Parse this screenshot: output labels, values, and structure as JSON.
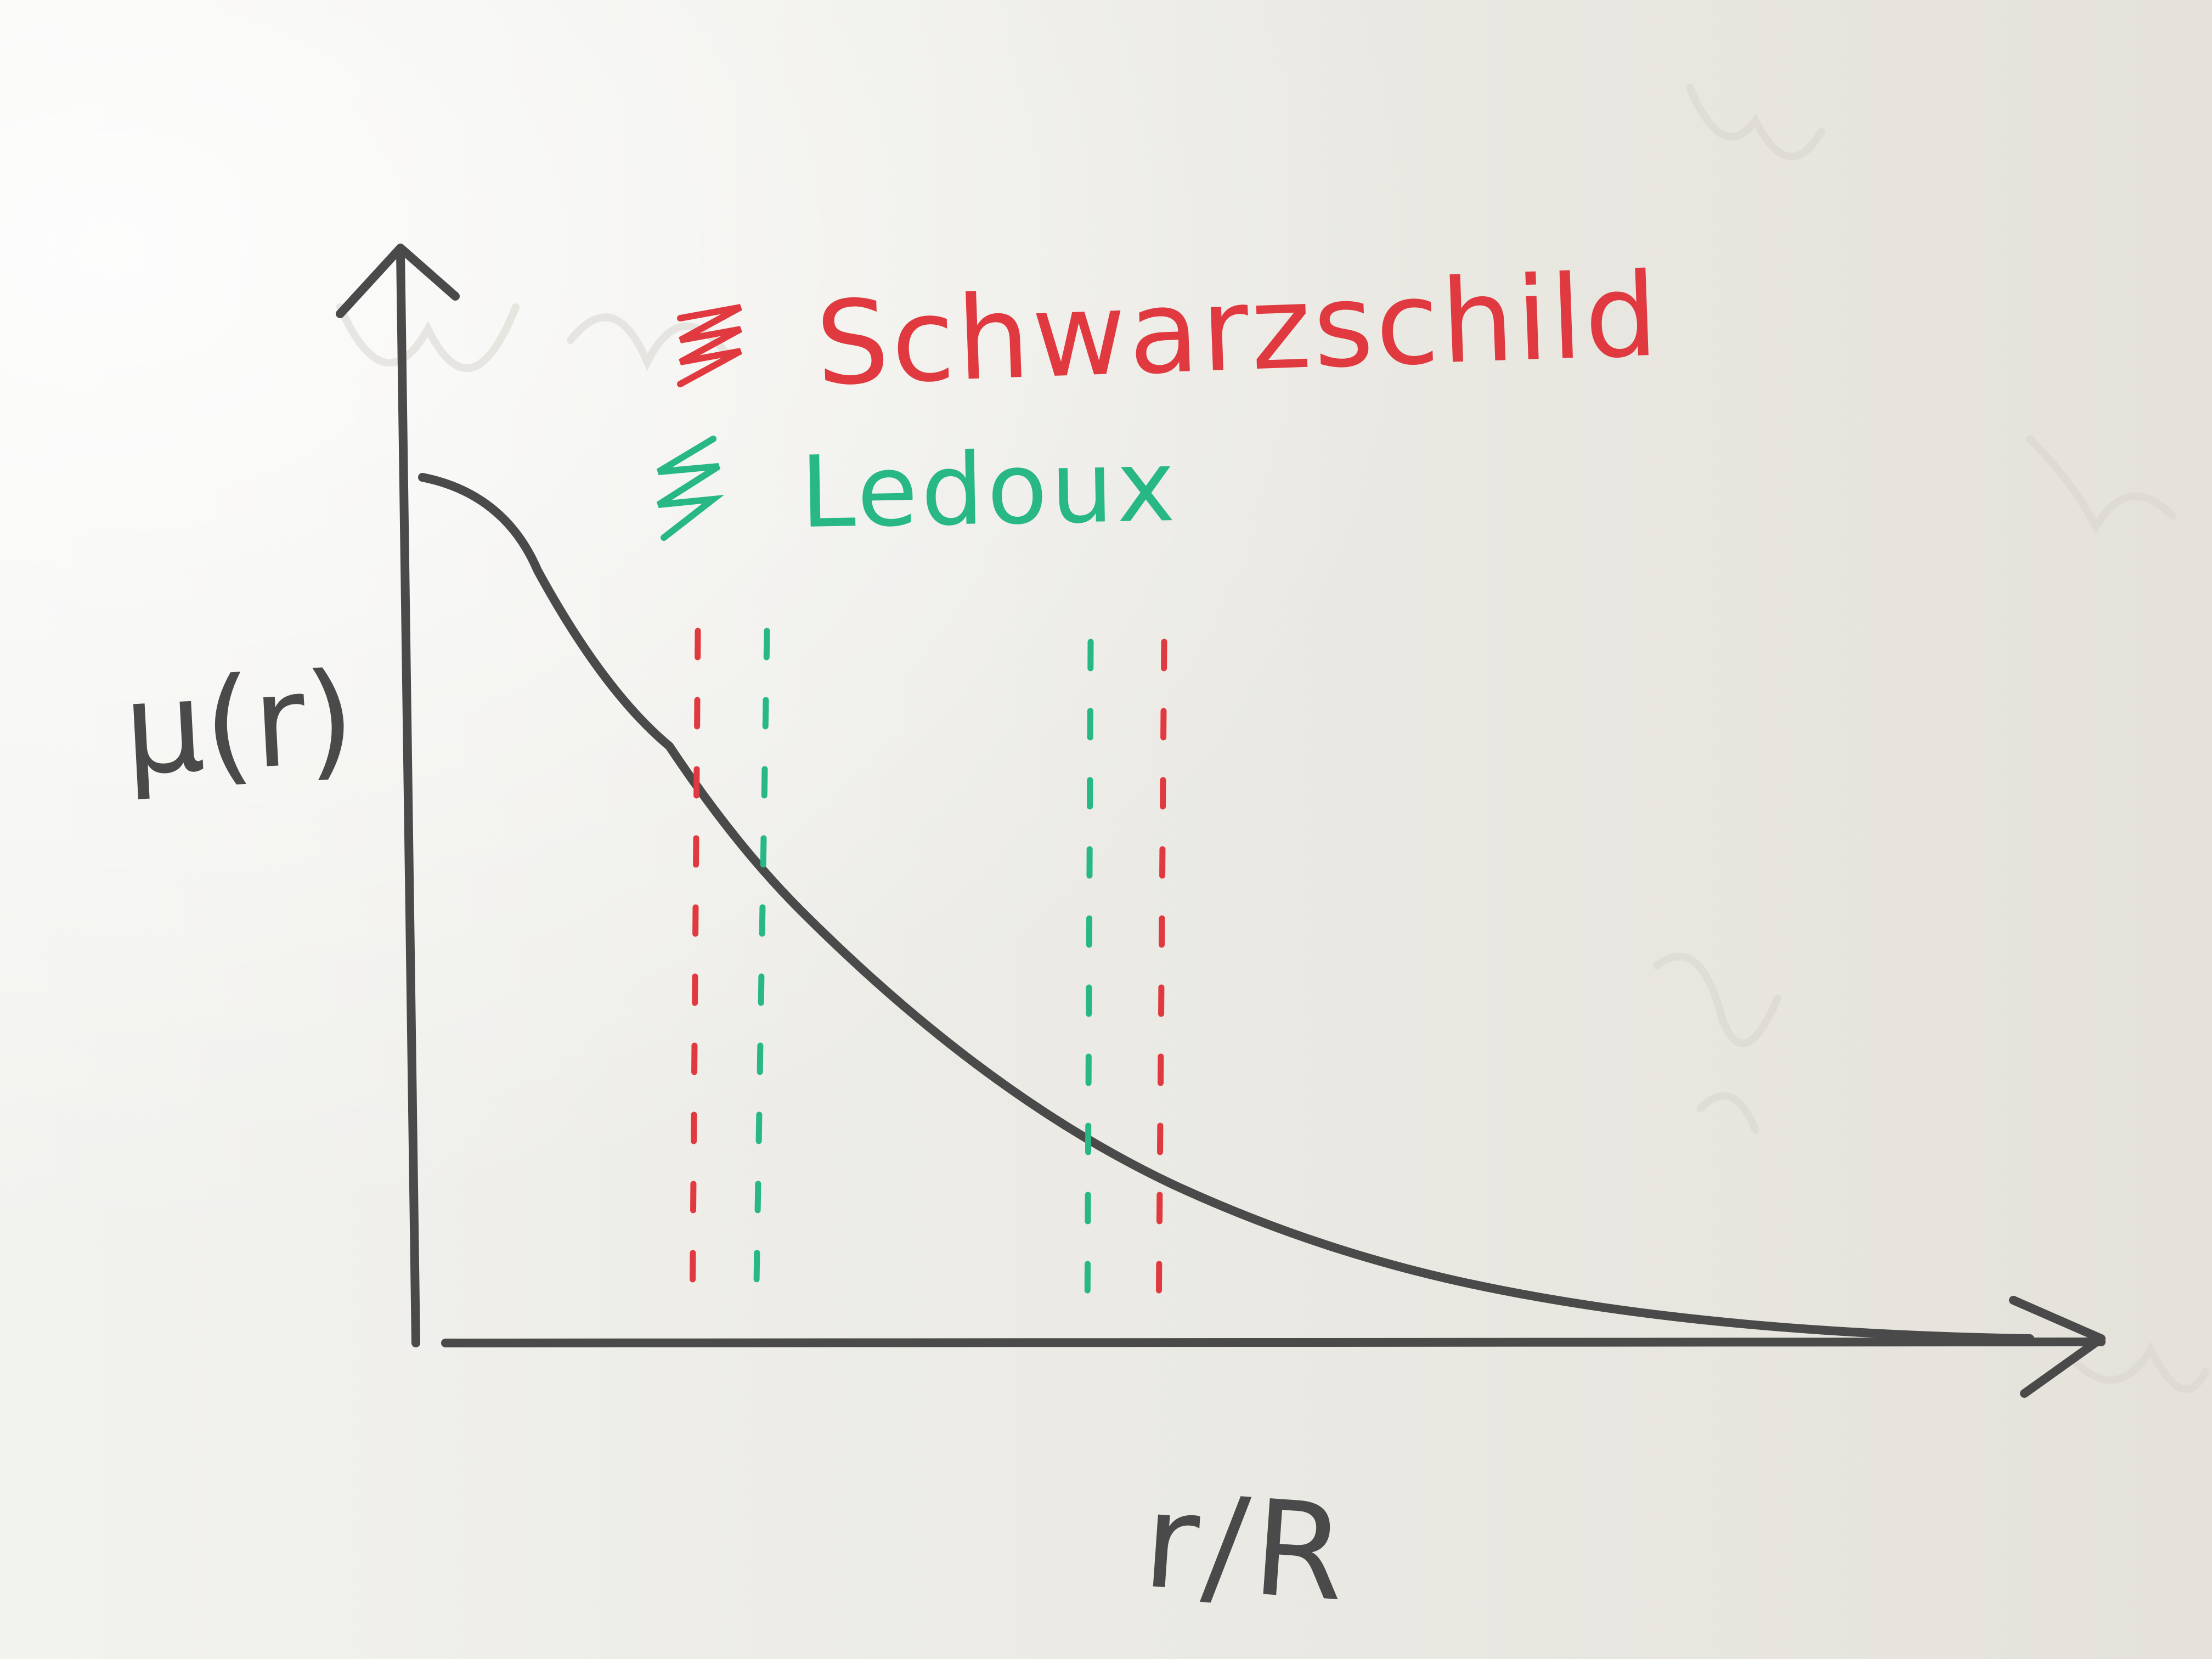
{
  "photo": {
    "subject": "whiteboard sketch"
  },
  "labels": {
    "y_axis": "μ(r)",
    "x_axis": "r/R",
    "legend_red": "Schwarzschild",
    "legend_green": "Ledoux"
  },
  "colors": {
    "board": "#ecebe6",
    "marker_black": "#4a4a4a",
    "marker_red": "#e03a40",
    "marker_green": "#27b886"
  },
  "sketch": {
    "curve_shape": "monotonically decreasing",
    "boundaries": [
      {
        "criterion": "Schwarzschild",
        "color": "red",
        "side": "inner"
      },
      {
        "criterion": "Ledoux",
        "color": "green",
        "side": "inner"
      },
      {
        "criterion": "Ledoux",
        "color": "green",
        "side": "outer"
      },
      {
        "criterion": "Schwarzschild",
        "color": "red",
        "side": "outer"
      }
    ]
  }
}
